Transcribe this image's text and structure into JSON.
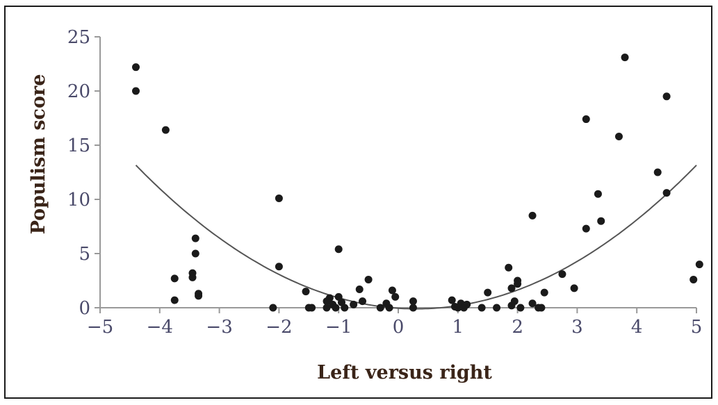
{
  "chart_data": {
    "type": "scatter",
    "title": "",
    "xlabel": "Left versus right",
    "ylabel": "Populism score",
    "xlim": [
      -5,
      5
    ],
    "ylim": [
      0,
      25
    ],
    "xticks": [
      "−5",
      "−4",
      "−3",
      "−2",
      "−1",
      "0",
      "1",
      "2",
      "3",
      "4",
      "5"
    ],
    "yticks": [
      "0",
      "5",
      "10",
      "15",
      "20",
      "25"
    ],
    "grid": false,
    "legend": "none",
    "colors": {
      "points": "#1a1a1a",
      "curve": "#555555",
      "axis": "#999999",
      "tick_text": "#4a4a6a",
      "title_text": "#3a2418"
    },
    "series": [
      {
        "points": [
          [
            -4.4,
            22.2
          ],
          [
            -4.4,
            20.0
          ],
          [
            -3.9,
            16.4
          ],
          [
            -3.75,
            2.7
          ],
          [
            -3.75,
            0.7
          ],
          [
            -3.4,
            6.4
          ],
          [
            -3.4,
            5.0
          ],
          [
            -3.45,
            3.2
          ],
          [
            -3.45,
            2.8
          ],
          [
            -3.35,
            1.3
          ],
          [
            -3.35,
            1.1
          ],
          [
            -2.1,
            0.0
          ],
          [
            -2.0,
            10.1
          ],
          [
            -2.0,
            3.8
          ],
          [
            -1.55,
            1.5
          ],
          [
            -1.5,
            0.0
          ],
          [
            -1.45,
            0.0
          ],
          [
            -1.2,
            0.0
          ],
          [
            -1.2,
            0.6
          ],
          [
            -1.15,
            0.9
          ],
          [
            -1.1,
            0.3
          ],
          [
            -1.05,
            0.0
          ],
          [
            -1.0,
            1.0
          ],
          [
            -1.0,
            5.4
          ],
          [
            -0.95,
            0.5
          ],
          [
            -0.9,
            0.0
          ],
          [
            -0.75,
            0.3
          ],
          [
            -0.65,
            1.7
          ],
          [
            -0.6,
            0.6
          ],
          [
            -0.5,
            2.6
          ],
          [
            -0.3,
            0.0
          ],
          [
            -0.2,
            0.4
          ],
          [
            -0.15,
            0.0
          ],
          [
            -0.1,
            1.6
          ],
          [
            -0.05,
            1.0
          ],
          [
            0.25,
            0.6
          ],
          [
            0.25,
            0.0
          ],
          [
            0.9,
            0.7
          ],
          [
            0.95,
            0.1
          ],
          [
            1.0,
            0.0
          ],
          [
            1.05,
            0.4
          ],
          [
            1.1,
            0.0
          ],
          [
            1.15,
            0.3
          ],
          [
            1.4,
            0.0
          ],
          [
            1.5,
            1.4
          ],
          [
            1.65,
            0.0
          ],
          [
            1.85,
            3.7
          ],
          [
            1.9,
            1.8
          ],
          [
            1.9,
            0.2
          ],
          [
            1.95,
            0.6
          ],
          [
            2.0,
            2.2
          ],
          [
            2.0,
            2.5
          ],
          [
            2.05,
            0.0
          ],
          [
            2.25,
            8.5
          ],
          [
            2.25,
            0.4
          ],
          [
            2.35,
            0.0
          ],
          [
            2.4,
            0.0
          ],
          [
            2.45,
            1.4
          ],
          [
            2.75,
            3.1
          ],
          [
            2.95,
            1.8
          ],
          [
            3.15,
            17.4
          ],
          [
            3.15,
            7.3
          ],
          [
            3.35,
            10.5
          ],
          [
            3.4,
            8.0
          ],
          [
            3.7,
            15.8
          ],
          [
            3.8,
            23.1
          ],
          [
            4.35,
            12.5
          ],
          [
            4.5,
            19.5
          ],
          [
            4.5,
            10.6
          ],
          [
            4.95,
            2.6
          ],
          [
            5.05,
            4.0
          ]
        ]
      }
    ],
    "fit": {
      "type": "quadratic",
      "a": 0.6,
      "h": 0.3,
      "k": -0.1,
      "x_range": [
        -4.4,
        5.0
      ]
    }
  }
}
